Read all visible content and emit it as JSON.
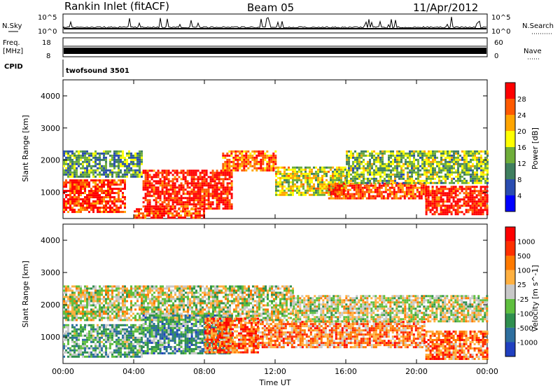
{
  "header": {
    "station": "Rankin Inlet (fitACF)",
    "beam": "Beam 05",
    "date": "11/Apr/2012"
  },
  "strip": {
    "nsky_label": "N.Sky",
    "nsearch_label": "N.Search",
    "freq_label": "Freq.",
    "freq_unit": "[MHz]",
    "nave_label": "Nave",
    "cpid_label": "CPID",
    "cpid_value": "twofsound 3501",
    "noise_ticks": [
      "10^5",
      "10^0"
    ],
    "noise_ticks_right": [
      "10^5",
      "10^0"
    ],
    "freq_ticks": [
      "18",
      "8"
    ],
    "nave_ticks": [
      "60",
      "0"
    ]
  },
  "chart_data": [
    {
      "type": "heatmap",
      "name": "power",
      "ylabel": "Slant Range [km]",
      "xlabel": "",
      "x_ticks": [
        "00:00",
        "04:00",
        "08:00",
        "12:00",
        "16:00",
        "20:00",
        "00:00"
      ],
      "y_ticks": [
        1000,
        2000,
        3000,
        4000
      ],
      "ylim": [
        180,
        4500
      ],
      "xlim_hours": [
        0,
        24
      ],
      "colorbar": {
        "label": "Power [dB]",
        "ticks": [
          "28",
          "24",
          "20",
          "16",
          "12",
          "8",
          "4"
        ],
        "colors": [
          "#0000ff",
          "#2a4cb0",
          "#3f7f5f",
          "#6fae3a",
          "#ffff00",
          "#ffa500",
          "#ff5a00",
          "#ff0000"
        ]
      },
      "regions": [
        {
          "t0": 0.0,
          "t1": 3.5,
          "r0": 400,
          "r1": 1400,
          "level": 0.9
        },
        {
          "t0": 0.0,
          "t1": 4.5,
          "r0": 1500,
          "r1": 2300,
          "level": 0.35
        },
        {
          "t0": 4.5,
          "t1": 9.5,
          "r0": 500,
          "r1": 1700,
          "level": 0.95
        },
        {
          "t0": 9.0,
          "t1": 12.0,
          "r0": 1700,
          "r1": 2300,
          "level": 0.8
        },
        {
          "t0": 12.0,
          "t1": 16.0,
          "r0": 900,
          "r1": 1800,
          "level": 0.55
        },
        {
          "t0": 15.0,
          "t1": 20.5,
          "r0": 800,
          "r1": 1300,
          "level": 0.85
        },
        {
          "t0": 16.0,
          "t1": 24.0,
          "r0": 1300,
          "r1": 2300,
          "level": 0.45
        },
        {
          "t0": 20.5,
          "t1": 24.0,
          "r0": 300,
          "r1": 1200,
          "level": 0.95
        },
        {
          "t0": 4.0,
          "t1": 8.0,
          "r0": 180,
          "r1": 500,
          "level": 0.9
        }
      ]
    },
    {
      "type": "heatmap",
      "name": "velocity",
      "ylabel": "Slant Range [km]",
      "xlabel": "Time UT",
      "x_ticks": [
        "00:00",
        "04:00",
        "08:00",
        "12:00",
        "16:00",
        "20:00",
        "00:00"
      ],
      "y_ticks": [
        1000,
        2000,
        3000,
        4000
      ],
      "ylim": [
        180,
        4500
      ],
      "xlim_hours": [
        0,
        24
      ],
      "colorbar": {
        "label": "Velocity [m s^-1]",
        "ticks": [
          "1000",
          "500",
          "100",
          "25",
          "-25",
          "-100",
          "-500",
          "-1000"
        ],
        "colors": [
          "#2040c0",
          "#2e6f9f",
          "#2f8f4f",
          "#5fbf3f",
          "#c8c8c8",
          "#ffb040",
          "#ff7a00",
          "#ff3000",
          "#ff0000"
        ]
      },
      "regions": [
        {
          "t0": 0.0,
          "t1": 4.5,
          "r0": 400,
          "r1": 1400,
          "level": 0.35
        },
        {
          "t0": 0.0,
          "t1": 13.0,
          "r0": 1500,
          "r1": 2600,
          "level": 0.5
        },
        {
          "t0": 4.5,
          "t1": 9.5,
          "r0": 500,
          "r1": 1700,
          "level": 0.3
        },
        {
          "t0": 8.0,
          "t1": 11.0,
          "r0": 500,
          "r1": 1600,
          "level": 0.75
        },
        {
          "t0": 11.0,
          "t1": 20.5,
          "r0": 700,
          "r1": 1500,
          "level": 0.7
        },
        {
          "t0": 13.0,
          "t1": 24.0,
          "r0": 1500,
          "r1": 2300,
          "level": 0.5
        },
        {
          "t0": 20.5,
          "t1": 24.0,
          "r0": 300,
          "r1": 1200,
          "level": 0.75
        }
      ]
    }
  ]
}
